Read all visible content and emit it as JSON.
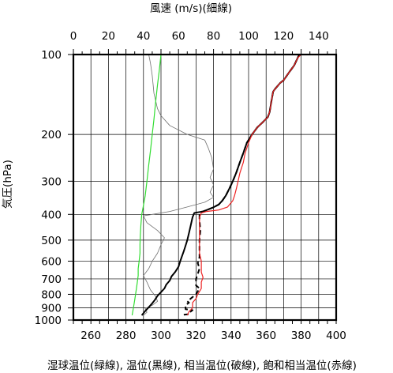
{
  "chart_data": {
    "type": "line",
    "title": "",
    "top_axis": {
      "label": "風速 (m/s)(細線)",
      "ticks": [
        "0",
        "20",
        "40",
        "60",
        "80",
        "100",
        "120",
        "140"
      ],
      "range": [
        0,
        150
      ]
    },
    "bottom_axis": {
      "label": "湿球温位(緑線), 温位(黒線), 相当温位(破線), 飽和相当温位(赤線)",
      "ticks": [
        "260",
        "280",
        "300",
        "320",
        "340",
        "360",
        "380",
        "400"
      ],
      "range": [
        250,
        400
      ]
    },
    "y_axis": {
      "label": "気圧(hPa)",
      "scale": "log",
      "reversed": true,
      "range": [
        100,
        1000
      ],
      "ticks": [
        "100",
        "200",
        "300",
        "400",
        "500",
        "600",
        "700",
        "800",
        "900",
        "1000"
      ]
    },
    "grid": true,
    "series": [
      {
        "name": "風速",
        "axis": "top",
        "color": "#707070",
        "style": "thin",
        "points": [
          [
            40,
            960
          ],
          [
            42,
            935
          ],
          [
            41,
            905
          ],
          [
            45,
            880
          ],
          [
            48,
            850
          ],
          [
            47,
            815
          ],
          [
            44,
            770
          ],
          [
            42,
            720
          ],
          [
            40,
            680
          ],
          [
            43,
            640
          ],
          [
            45,
            600
          ],
          [
            48,
            560
          ],
          [
            50,
            520
          ],
          [
            52,
            490
          ],
          [
            48,
            460
          ],
          [
            42,
            430
          ],
          [
            40,
            405
          ],
          [
            45,
            400
          ],
          [
            55,
            390
          ],
          [
            65,
            375
          ],
          [
            75,
            360
          ],
          [
            80,
            345
          ],
          [
            78,
            330
          ],
          [
            80,
            310
          ],
          [
            78,
            290
          ],
          [
            80,
            270
          ],
          [
            79,
            245
          ],
          [
            77,
            225
          ],
          [
            75,
            210
          ],
          [
            65,
            200
          ],
          [
            55,
            185
          ],
          [
            50,
            170
          ],
          [
            48,
            160
          ],
          [
            46,
            140
          ],
          [
            45,
            120
          ],
          [
            44,
            108
          ],
          [
            43,
            100
          ]
        ]
      },
      {
        "name": "湿球温位",
        "axis": "bottom",
        "color": "#33dd33",
        "style": "solid",
        "points": [
          [
            283.5,
            960
          ],
          [
            284,
            920
          ],
          [
            284.5,
            880
          ],
          [
            285,
            840
          ],
          [
            285.5,
            800
          ],
          [
            286,
            760
          ],
          [
            286.5,
            720
          ],
          [
            287,
            680
          ],
          [
            287,
            640
          ],
          [
            287.5,
            600
          ],
          [
            288,
            560
          ],
          [
            288,
            520
          ],
          [
            288.2,
            480
          ],
          [
            288.5,
            440
          ],
          [
            289,
            400
          ],
          [
            290,
            370
          ],
          [
            291,
            340
          ],
          [
            292,
            300
          ],
          [
            293,
            260
          ],
          [
            294,
            230
          ],
          [
            295,
            200
          ],
          [
            296,
            175
          ],
          [
            297,
            150
          ],
          [
            298,
            130
          ],
          [
            299,
            115
          ],
          [
            300,
            100
          ]
        ]
      },
      {
        "name": "温位",
        "axis": "bottom",
        "color": "#000000",
        "style": "thick",
        "points": [
          [
            289,
            960
          ],
          [
            291,
            925
          ],
          [
            293,
            895
          ],
          [
            295,
            865
          ],
          [
            296.5,
            840
          ],
          [
            298,
            810
          ],
          [
            300,
            785
          ],
          [
            302,
            760
          ],
          [
            303,
            735
          ],
          [
            305,
            710
          ],
          [
            306,
            685
          ],
          [
            308,
            660
          ],
          [
            310,
            630
          ],
          [
            311,
            600
          ],
          [
            312,
            575
          ],
          [
            313,
            550
          ],
          [
            314,
            525
          ],
          [
            315,
            500
          ],
          [
            316,
            470
          ],
          [
            317,
            440
          ],
          [
            318,
            410
          ],
          [
            319,
            395
          ],
          [
            321,
            393
          ],
          [
            324,
            390
          ],
          [
            327,
            383
          ],
          [
            330,
            376
          ],
          [
            333,
            367
          ],
          [
            335,
            355
          ],
          [
            337,
            340
          ],
          [
            339,
            320
          ],
          [
            341,
            300
          ],
          [
            343,
            278
          ],
          [
            345,
            255
          ],
          [
            347,
            235
          ],
          [
            349,
            215
          ],
          [
            352,
            200
          ],
          [
            355,
            188
          ],
          [
            358,
            180
          ],
          [
            361,
            172
          ],
          [
            362,
            165
          ],
          [
            363,
            150
          ],
          [
            364,
            138
          ],
          [
            365,
            135
          ],
          [
            368,
            128
          ],
          [
            370,
            125
          ],
          [
            373,
            117
          ],
          [
            376,
            110
          ],
          [
            378,
            103
          ],
          [
            379,
            100
          ]
        ]
      },
      {
        "name": "相当温位",
        "axis": "bottom",
        "color": "#000000",
        "style": "dashed",
        "points": [
          [
            313,
            955
          ],
          [
            316,
            950
          ],
          [
            316,
            940
          ],
          [
            318,
            918
          ],
          [
            314,
            910
          ],
          [
            314,
            880
          ],
          [
            316,
            860
          ],
          [
            315,
            850
          ],
          [
            317,
            830
          ],
          [
            320,
            800
          ],
          [
            321,
            780
          ],
          [
            322,
            760
          ],
          [
            320,
            740
          ],
          [
            320,
            700
          ],
          [
            321,
            670
          ],
          [
            322,
            640
          ],
          [
            321,
            610
          ],
          [
            322,
            580
          ],
          [
            322,
            540
          ],
          [
            322,
            500
          ],
          [
            322.5,
            460
          ],
          [
            322,
            420
          ],
          [
            322,
            400
          ],
          [
            322.5,
            392
          ],
          [
            324,
            390
          ],
          [
            327,
            383
          ],
          [
            330,
            376
          ],
          [
            333,
            367
          ],
          [
            335,
            355
          ],
          [
            337,
            340
          ],
          [
            339,
            320
          ],
          [
            341,
            300
          ],
          [
            343,
            278
          ],
          [
            345,
            255
          ],
          [
            347,
            235
          ],
          [
            349,
            215
          ],
          [
            352,
            200
          ],
          [
            355,
            188
          ],
          [
            358,
            180
          ],
          [
            361,
            172
          ],
          [
            362,
            165
          ],
          [
            363,
            150
          ],
          [
            364,
            138
          ],
          [
            365,
            135
          ],
          [
            368,
            128
          ],
          [
            370,
            125
          ],
          [
            373,
            117
          ],
          [
            376,
            110
          ],
          [
            378,
            103
          ],
          [
            379,
            100
          ]
        ]
      },
      {
        "name": "飽和相当温位",
        "axis": "bottom",
        "color": "#ee2222",
        "style": "solid",
        "points": [
          [
            315,
            960
          ],
          [
            316,
            930
          ],
          [
            318,
            900
          ],
          [
            318,
            860
          ],
          [
            320,
            830
          ],
          [
            321,
            800
          ],
          [
            323,
            760
          ],
          [
            323,
            720
          ],
          [
            324,
            690
          ],
          [
            323,
            660
          ],
          [
            323,
            630
          ],
          [
            323,
            600
          ],
          [
            322,
            560
          ],
          [
            322,
            520
          ],
          [
            322,
            480
          ],
          [
            322,
            440
          ],
          [
            322,
            410
          ],
          [
            323,
            395
          ],
          [
            326,
            390
          ],
          [
            333,
            385
          ],
          [
            338,
            375
          ],
          [
            341,
            355
          ],
          [
            342,
            340
          ],
          [
            343,
            320
          ],
          [
            344,
            300
          ],
          [
            345,
            280
          ],
          [
            347,
            255
          ],
          [
            348,
            235
          ],
          [
            350,
            215
          ],
          [
            352,
            200
          ],
          [
            355,
            188
          ],
          [
            358,
            180
          ],
          [
            361,
            172
          ],
          [
            362,
            165
          ],
          [
            363,
            150
          ],
          [
            364,
            138
          ],
          [
            365,
            135
          ],
          [
            368,
            128
          ],
          [
            370,
            125
          ],
          [
            373,
            117
          ],
          [
            376,
            110
          ],
          [
            378,
            103
          ],
          [
            380,
            100
          ]
        ]
      }
    ]
  }
}
